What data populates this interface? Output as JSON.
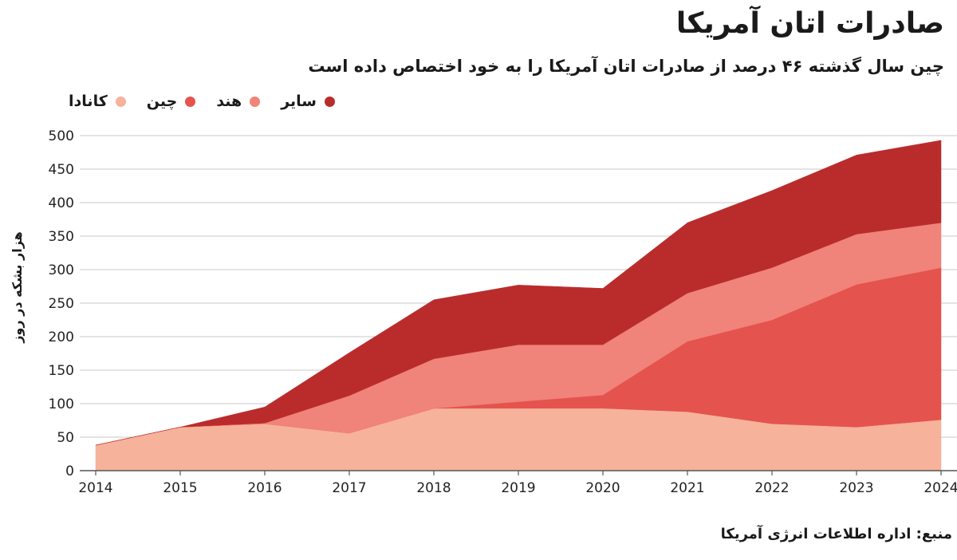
{
  "chart_data": {
    "type": "area",
    "stacked": true,
    "title": "صادرات اتان آمریکا",
    "subtitle": "چین سال گذشته ۴۶ درصد از صادرات اتان آمریکا را به خود اختصاص داده است",
    "ylabel": "هزار بشکه در روز",
    "xlabel": "",
    "source": "منبع: اداره اطلاعات انرژی آمریکا",
    "x": [
      "2014",
      "2015",
      "2016",
      "2017",
      "2018",
      "2019",
      "2020",
      "2021",
      "2022",
      "2023",
      "2024"
    ],
    "ylim": [
      0,
      500
    ],
    "yticks": [
      "0",
      "50",
      "100",
      "150",
      "200",
      "250",
      "300",
      "350",
      "400",
      "450",
      "500"
    ],
    "grid": true,
    "legend_position": "top-left",
    "legend_order": [
      "سایر",
      "هند",
      "چین",
      "کانادا"
    ],
    "series": [
      {
        "name": "کانادا",
        "color": "#f6b29a",
        "values": [
          38,
          65,
          70,
          56,
          93,
          93,
          93,
          88,
          70,
          65,
          76
        ]
      },
      {
        "name": "چین",
        "color": "#e5534e",
        "values": [
          0,
          0,
          0,
          0,
          0,
          10,
          20,
          105,
          155,
          213,
          227
        ]
      },
      {
        "name": "هند",
        "color": "#f0837a",
        "values": [
          0,
          0,
          1,
          56,
          74,
          85,
          75,
          72,
          78,
          75,
          67
        ]
      },
      {
        "name": "سایر",
        "color": "#ba2c2c",
        "values": [
          0,
          0,
          24,
          64,
          88,
          89,
          84,
          105,
          115,
          118,
          123
        ]
      }
    ]
  }
}
